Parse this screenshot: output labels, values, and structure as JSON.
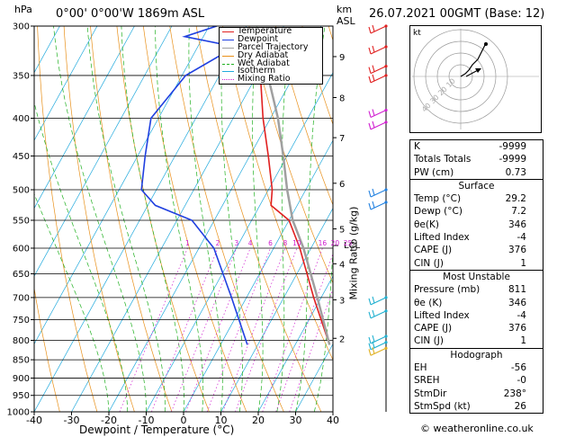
{
  "header": {
    "hpa": "hPa",
    "location": "0°00' 0°00'W 1869m ASL",
    "km": "km",
    "asl": "ASL",
    "datetime": "26.07.2021 00GMT (Base: 12)"
  },
  "chart_data": {
    "type": "skew-t",
    "xlabel": "Dewpoint / Temperature (°C)",
    "ylabel": "Mixing Ratio (g/kg)",
    "xlim": [
      -40,
      40
    ],
    "ylim_hpa": [
      1000,
      300
    ],
    "pressure_ticks": [
      300,
      350,
      400,
      450,
      500,
      550,
      600,
      650,
      700,
      750,
      800,
      850,
      900,
      950,
      1000
    ],
    "temp_ticks": [
      -40,
      -30,
      -20,
      -10,
      0,
      10,
      20,
      30,
      40
    ],
    "km_ticks": [
      {
        "km": "9",
        "p": 330
      },
      {
        "km": "8",
        "p": 375
      },
      {
        "km": "7",
        "p": 425
      },
      {
        "km": "6",
        "p": 490
      },
      {
        "km": "5",
        "p": 565
      },
      {
        "km": "4",
        "p": 630
      },
      {
        "km": "3",
        "p": 705
      },
      {
        "km": "2",
        "p": 795
      }
    ],
    "lcl_label": "LCL",
    "lcl_p": 595,
    "mixing_ratio_labels": [
      "1",
      "2",
      "3",
      "4",
      "6",
      "8",
      "10",
      "16",
      "20",
      "25"
    ],
    "legend": [
      "Temperature",
      "Dewpoint",
      "Parcel Trajectory",
      "Dry Adiabat",
      "Wet Adiabat",
      "Isotherm",
      "Mixing Ratio"
    ],
    "series": [
      {
        "name": "Temperature",
        "color": "#e02020",
        "points": [
          [
            811,
            29.2
          ],
          [
            700,
            18
          ],
          [
            600,
            7
          ],
          [
            550,
            0
          ],
          [
            525,
            -7
          ],
          [
            500,
            -9
          ],
          [
            450,
            -15
          ],
          [
            400,
            -22
          ],
          [
            350,
            -29
          ]
        ]
      },
      {
        "name": "Dewpoint",
        "color": "#2040e0",
        "points": [
          [
            811,
            7.2
          ],
          [
            700,
            -4
          ],
          [
            600,
            -16
          ],
          [
            550,
            -26
          ],
          [
            525,
            -38
          ],
          [
            500,
            -44
          ],
          [
            450,
            -48
          ],
          [
            400,
            -52
          ],
          [
            350,
            -49
          ],
          [
            320,
            -40
          ],
          [
            310,
            -55
          ],
          [
            300,
            -48
          ]
        ]
      },
      {
        "name": "Parcel Trajectory",
        "color": "#a0a0a0",
        "points": [
          [
            811,
            29.2
          ],
          [
            700,
            19
          ],
          [
            600,
            8
          ],
          [
            550,
            1
          ],
          [
            500,
            -5
          ],
          [
            450,
            -11
          ],
          [
            400,
            -18
          ],
          [
            350,
            -27
          ]
        ]
      }
    ],
    "hodograph": {
      "rings": [
        "40",
        "30",
        "20",
        "10"
      ],
      "label": "kt"
    }
  },
  "indices": {
    "rows": [
      {
        "k": "K",
        "v": "-9999"
      },
      {
        "k": "Totals Totals",
        "v": "-9999"
      },
      {
        "k": "PW (cm)",
        "v": "0.73"
      }
    ],
    "surface": {
      "title": "Surface",
      "rows": [
        {
          "k": "Temp (°C)",
          "v": "29.2"
        },
        {
          "k": "Dewp (°C)",
          "v": "7.2"
        },
        {
          "k": "θe(K)",
          "v": "346"
        },
        {
          "k": "Lifted Index",
          "v": "-4"
        },
        {
          "k": "CAPE (J)",
          "v": "376"
        },
        {
          "k": "CIN (J)",
          "v": "1"
        }
      ]
    },
    "unstable": {
      "title": "Most Unstable",
      "rows": [
        {
          "k": "Pressure (mb)",
          "v": "811"
        },
        {
          "k": "θe (K)",
          "v": "346"
        },
        {
          "k": "Lifted Index",
          "v": "-4"
        },
        {
          "k": "CAPE (J)",
          "v": "376"
        },
        {
          "k": "CIN (J)",
          "v": "1"
        }
      ]
    },
    "hodograph": {
      "title": "Hodograph",
      "rows": [
        {
          "k": "EH",
          "v": "-56"
        },
        {
          "k": "SREH",
          "v": "-0"
        },
        {
          "k": "StmDir",
          "v": "238°"
        },
        {
          "k": "StmSpd (kt)",
          "v": "26"
        }
      ]
    }
  },
  "footer": {
    "copyright": "© weatheronline.co.uk"
  }
}
